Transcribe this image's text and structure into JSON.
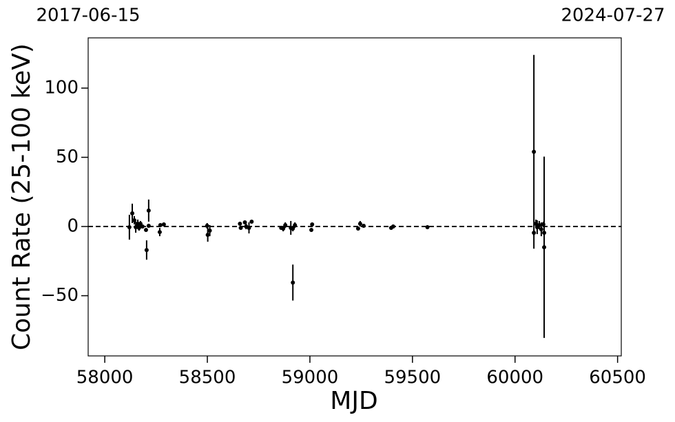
{
  "chart_data": {
    "type": "scatter",
    "xlabel": "MJD",
    "ylabel": "Count Rate (25-100 keV)",
    "xlim": [
      57919,
      60518
    ],
    "ylim": [
      -93.5,
      136.3
    ],
    "xticks": [
      58000,
      58500,
      59000,
      59500,
      60000,
      60500
    ],
    "yticks": [
      {
        "value": -50,
        "label": "−50"
      },
      0,
      50,
      100
    ],
    "x2ticks": [
      {
        "value": 57919,
        "label": "2017-06-15"
      },
      {
        "value": 60518,
        "label": "2024-07-27"
      }
    ],
    "hline": 0,
    "series": [
      {
        "color": "#000000",
        "x": [
          58120,
          58134,
          58144,
          58151,
          58161,
          58167,
          58174,
          58184,
          58201,
          58204,
          58214,
          58214,
          58268,
          58271,
          58288,
          58499,
          58502,
          58512,
          58659,
          58663,
          58683,
          58689,
          58703,
          58716,
          58860,
          58870,
          58880,
          58907,
          58917,
          58917,
          58927,
          59007,
          59011,
          59235,
          59245,
          59262,
          59396,
          59406,
          59573,
          60092,
          60092,
          60102,
          60108,
          60118,
          60128,
          60138,
          60142,
          60142
        ],
        "values": [
          -0.5,
          9.5,
          4.5,
          -0.5,
          2,
          -1,
          2,
          0,
          -2.5,
          -17,
          11.5,
          0.5,
          -4,
          1,
          1.5,
          0.5,
          -6,
          -3,
          2,
          -1,
          3,
          0,
          -1,
          3.5,
          -1,
          -1.5,
          1,
          -1,
          -40.5,
          -1.5,
          1,
          -2.5,
          1.5,
          -1.5,
          2,
          0.5,
          -1,
          0,
          -0.5,
          54,
          -4.5,
          2,
          -0.5,
          1,
          -2,
          1.5,
          -15,
          -4.5
        ],
        "errors": [
          9,
          7,
          3,
          4,
          3,
          2,
          2,
          1,
          1,
          7,
          8,
          1,
          3,
          1,
          1,
          2,
          5,
          4,
          1,
          1,
          1,
          2,
          4,
          1,
          1,
          2,
          2,
          5,
          13,
          2,
          2,
          1,
          1,
          1,
          2,
          1,
          1,
          1,
          0.5,
          70,
          2,
          3,
          5,
          3,
          5,
          2,
          65.5,
          2
        ]
      }
    ]
  }
}
